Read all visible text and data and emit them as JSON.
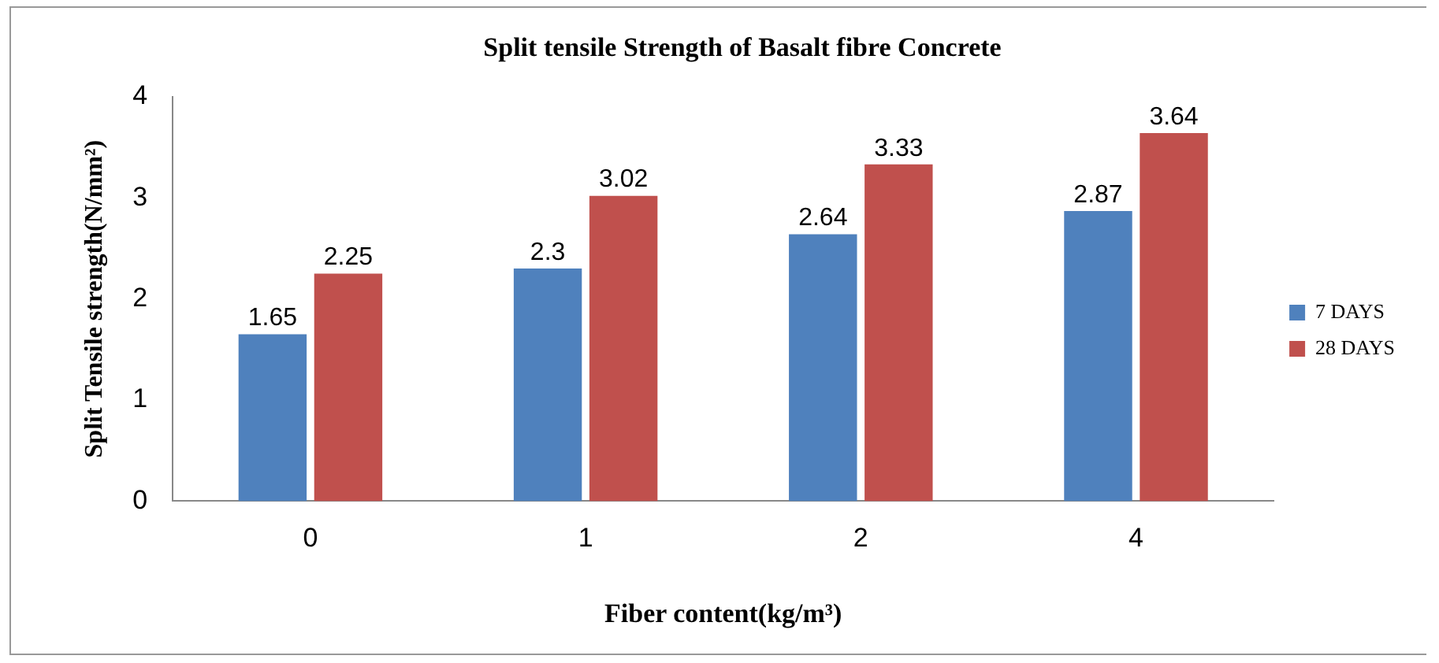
{
  "chart_data": {
    "type": "bar",
    "title": "Split tensile Strength of Basalt fibre Concrete",
    "xlabel": "Fiber content(kg/m³)",
    "ylabel": "Split Tensile strength(N/mm²)",
    "categories": [
      "0",
      "1",
      "2",
      "4"
    ],
    "series": [
      {
        "name": "7 DAYS",
        "color": "#4f81bd",
        "values": [
          1.65,
          2.3,
          2.64,
          2.87
        ]
      },
      {
        "name": "28 DAYS",
        "color": "#c0504d",
        "values": [
          2.25,
          3.02,
          3.33,
          3.64
        ]
      }
    ],
    "ylim": [
      0,
      4
    ],
    "yticks": [
      0,
      1,
      2,
      3,
      4
    ],
    "grid": false,
    "legend": "right",
    "data_labels": true
  }
}
